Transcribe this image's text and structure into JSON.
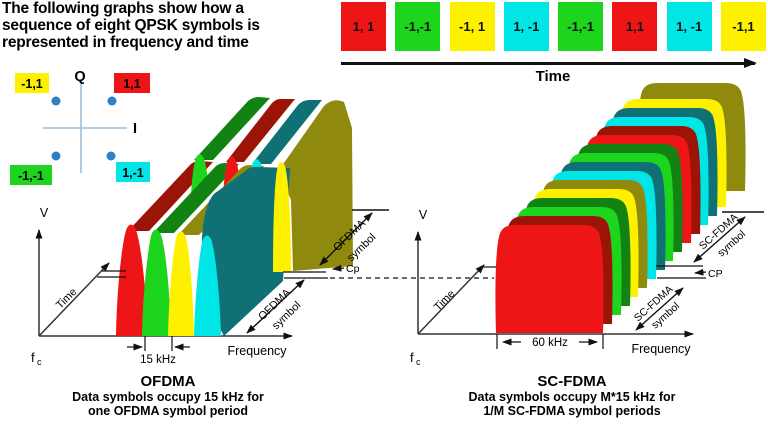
{
  "header": {
    "title_lines": [
      "The following graphs show how a",
      "sequence of eight QPSK symbols is",
      "represented in frequency and time"
    ],
    "time_arrow_label": "Time"
  },
  "palette": {
    "red": "#ed1515",
    "green": "#1cd51c",
    "yellow": "#fdf100",
    "cyan": "#00e6e6",
    "dark_red": "#9c1407",
    "dark_green": "#128312",
    "olive": "#8f890e",
    "teal": "#0f7175",
    "axis": "#444444",
    "constellation_axis": "#a7c6e2",
    "constellation_dot": "#2e7fc4"
  },
  "symbol_sequence": {
    "symbols": [
      {
        "label": "1, 1",
        "color": "#ed1515"
      },
      {
        "label": "-1,-1",
        "color": "#1cd51c"
      },
      {
        "label": "-1, 1",
        "color": "#fdf100"
      },
      {
        "label": "1, -1",
        "color": "#00e6e6"
      },
      {
        "label": "-1,-1",
        "color": "#1cd51c"
      },
      {
        "label": "1,1",
        "color": "#ed1515"
      },
      {
        "label": "1, -1",
        "color": "#00e6e6"
      },
      {
        "label": "-1,1",
        "color": "#fdf100"
      }
    ]
  },
  "constellation": {
    "q_label": "Q",
    "i_label": "I",
    "points": [
      {
        "label": "-1,1",
        "color": "#fdf100"
      },
      {
        "label": "1,1",
        "color": "#ed1515"
      },
      {
        "label": "-1,-1",
        "color": "#1cd51c"
      },
      {
        "label": "1,-1",
        "color": "#00e6e6"
      }
    ]
  },
  "ofdma": {
    "axis_v": "V",
    "axis_time": "Time",
    "axis_frequency": "Frequency",
    "fc_main": "f",
    "fc_sub": "c",
    "bandwidth": "15 kHz",
    "symbol_word1": "OFDMA",
    "symbol_word2": "symbol",
    "cp": "Cp",
    "caption_title": "OFDMA",
    "caption_line1": "Data symbols occupy 15 kHz for",
    "caption_line2": "one OFDMA symbol period"
  },
  "scfdma": {
    "axis_v": "V",
    "axis_time": "Time",
    "axis_frequency": "Frequency",
    "fc_main": "f",
    "fc_sub": "c",
    "bandwidth": "60 kHz",
    "symbol_word1": "SC-FDMA",
    "symbol_word2": "symbol",
    "cp": "CP",
    "caption_title": "SC-FDMA",
    "caption_line1": "Data symbols occupy M*15 kHz for",
    "caption_line2": "1/M SC-FDMA symbol periods"
  }
}
